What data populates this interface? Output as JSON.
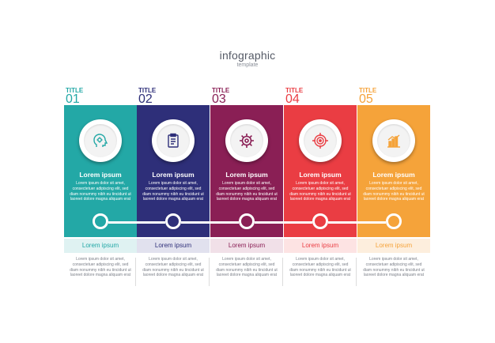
{
  "header": {
    "title": "infographic",
    "subtitle": "template"
  },
  "colors": {
    "teal": "#23a8a6",
    "navy": "#2e2f79",
    "purple": "#8a1f55",
    "red": "#ea3d43",
    "orange": "#f5a33a"
  },
  "steps": [
    {
      "title": "TITLE",
      "number": "01",
      "heading": "Lorem ipsum",
      "text": "Lorem ipsum dolor sit amet, consectetuer adipiscing elit, sed diam nonummy nibh eu tincidunt ut laoreet dolore magna aliquam erat",
      "band_title": "Lorem ipsum",
      "band_text": "Lorem ipsum dolor sit amet, consectetuer adipiscing elit, sed diam nonummy nibh eu tincidunt ut laoreet dolore magna aliquam erat",
      "icon": "head-gear-icon",
      "color": "#23a8a6",
      "band_bg": "#dff2f2",
      "band_color": "#23a8a6"
    },
    {
      "title": "TITLE",
      "number": "02",
      "heading": "Lorem ipsum",
      "text": "Lorem ipsum dolor sit amet, consectetuer adipiscing elit, sed diam nonummy nibh eu tincidunt ut laoreet dolore magna aliquam erat",
      "band_title": "Lorem ipsum",
      "band_text": "Lorem ipsum dolor sit amet, consectetuer adipiscing elit, sed diam nonummy nibh eu tincidunt ut laoreet dolore magna aliquam erat",
      "icon": "clipboard-icon",
      "color": "#2e2f79",
      "band_bg": "#e1e1ee",
      "band_color": "#2e2f79"
    },
    {
      "title": "TITLE",
      "number": "03",
      "heading": "Lorem ipsum",
      "text": "Lorem ipsum dolor sit amet, consectetuer adipiscing elit, sed diam nonummy nibh eu tincidunt ut laoreet dolore magna aliquam erat",
      "band_title": "Lorem ipsum",
      "band_text": "Lorem ipsum dolor sit amet, consectetuer adipiscing elit, sed diam nonummy nibh eu tincidunt ut laoreet dolore magna aliquam erat",
      "icon": "gear-icon",
      "color": "#8a1f55",
      "band_bg": "#f1e0e8",
      "band_color": "#8a1f55"
    },
    {
      "title": "TITLE",
      "number": "04",
      "heading": "Lorem ipsum",
      "text": "Lorem ipsum dolor sit amet, consectetuer adipiscing elit, sed diam nonummy nibh eu tincidunt ut laoreet dolore magna aliquam erat",
      "band_title": "Lorem ipsum",
      "band_text": "Lorem ipsum dolor sit amet, consectetuer adipiscing elit, sed diam nonummy nibh eu tincidunt ut laoreet dolore magna aliquam erat",
      "icon": "target-icon",
      "color": "#ea3d43",
      "band_bg": "#fde3e3",
      "band_color": "#ea3d43"
    },
    {
      "title": "TITLE",
      "number": "05",
      "heading": "Lorem ipsum",
      "text": "Lorem ipsum dolor sit amet, consectetuer adipiscing elit, sed diam nonummy nibh eu tincidunt ut laoreet dolore magna aliquam erat",
      "band_title": "Lorem ipsum",
      "band_text": "Lorem ipsum dolor sit amet, consectetuer adipiscing elit, sed diam nonummy nibh eu tincidunt ut laoreet dolore magna aliquam erat",
      "icon": "bar-chart-icon",
      "color": "#f5a33a",
      "band_bg": "#fdeedd",
      "band_color": "#f5a33a"
    }
  ]
}
